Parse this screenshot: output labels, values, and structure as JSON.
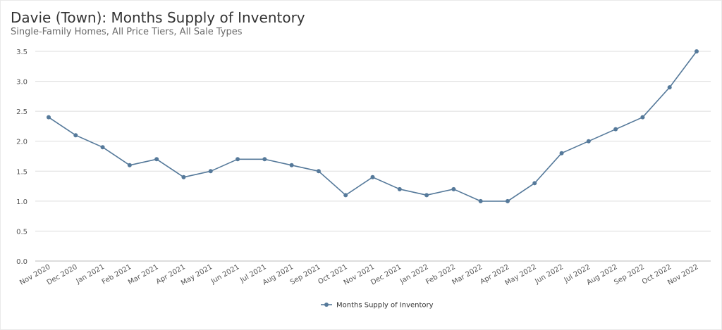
{
  "header": {
    "title": "Davie (Town): Months Supply of Inventory",
    "subtitle": "Single-Family Homes, All Price Tiers, All Sale Types"
  },
  "colors": {
    "series": "#55799a",
    "grid": "#dddddd",
    "axis": "#bbbbbb"
  },
  "chart_data": {
    "type": "line",
    "title": "Davie (Town): Months Supply of Inventory",
    "subtitle": "Single-Family Homes, All Price Tiers, All Sale Types",
    "categories": [
      "Nov 2020",
      "Dec 2020",
      "Jan 2021",
      "Feb 2021",
      "Mar 2021",
      "Apr 2021",
      "May 2021",
      "Jun 2021",
      "Jul 2021",
      "Aug 2021",
      "Sep 2021",
      "Oct 2021",
      "Nov 2021",
      "Dec 2021",
      "Jan 2022",
      "Feb 2022",
      "Mar 2022",
      "Apr 2022",
      "May 2022",
      "Jun 2022",
      "Jul 2022",
      "Aug 2022",
      "Sep 2022",
      "Oct 2022",
      "Nov 2022"
    ],
    "series": [
      {
        "name": "Months Supply of Inventory",
        "values": [
          2.4,
          2.1,
          1.9,
          1.6,
          1.7,
          1.4,
          1.5,
          1.7,
          1.7,
          1.6,
          1.5,
          1.1,
          1.4,
          1.2,
          1.1,
          1.2,
          1.0,
          1.0,
          1.3,
          1.8,
          2.0,
          2.2,
          2.4,
          2.9,
          3.5
        ]
      }
    ],
    "yticks": [
      "0.0",
      "0.5",
      "1.0",
      "1.5",
      "2.0",
      "2.5",
      "3.0",
      "3.5"
    ],
    "ylim": [
      0,
      3.5
    ],
    "xlabel": "",
    "ylabel": "",
    "grid": true,
    "legend": "bottom-center"
  }
}
